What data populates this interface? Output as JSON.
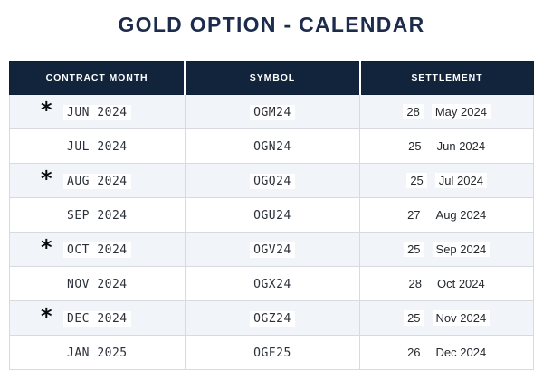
{
  "page_title": "GOLD OPTION - CALENDAR",
  "colors": {
    "header_bg": "#12233c",
    "header_text": "#ffffff",
    "title_text": "#1d2c4c",
    "stripe_bg": "#f1f4f8",
    "row_bg": "#ffffff",
    "border": "#d7dade",
    "highlight_bg": "#ffffff"
  },
  "star_glyph": "*",
  "chart_data": {
    "type": "table",
    "title": "GOLD OPTION - CALENDAR",
    "columns": [
      "CONTRACT MONTH",
      "SYMBOL",
      "SETTLEMENT"
    ],
    "rows": [
      {
        "contract_month": "JUN 2024",
        "starred": true,
        "symbol": "OGM24",
        "settlement_day": "28",
        "settlement_date": "May 2024"
      },
      {
        "contract_month": "JUL 2024",
        "starred": false,
        "symbol": "OGN24",
        "settlement_day": "25",
        "settlement_date": "Jun 2024"
      },
      {
        "contract_month": "AUG 2024",
        "starred": true,
        "symbol": "OGQ24",
        "settlement_day": "25",
        "settlement_date": "Jul 2024"
      },
      {
        "contract_month": "SEP 2024",
        "starred": false,
        "symbol": "OGU24",
        "settlement_day": "27",
        "settlement_date": "Aug 2024"
      },
      {
        "contract_month": "OCT 2024",
        "starred": true,
        "symbol": "OGV24",
        "settlement_day": "25",
        "settlement_date": "Sep 2024"
      },
      {
        "contract_month": "NOV 2024",
        "starred": false,
        "symbol": "OGX24",
        "settlement_day": "28",
        "settlement_date": "Oct 2024"
      },
      {
        "contract_month": "DEC 2024",
        "starred": true,
        "symbol": "OGZ24",
        "settlement_day": "25",
        "settlement_date": "Nov 2024"
      },
      {
        "contract_month": "JAN 2025",
        "starred": false,
        "symbol": "OGF25",
        "settlement_day": "26",
        "settlement_date": "Dec 2024"
      }
    ]
  }
}
